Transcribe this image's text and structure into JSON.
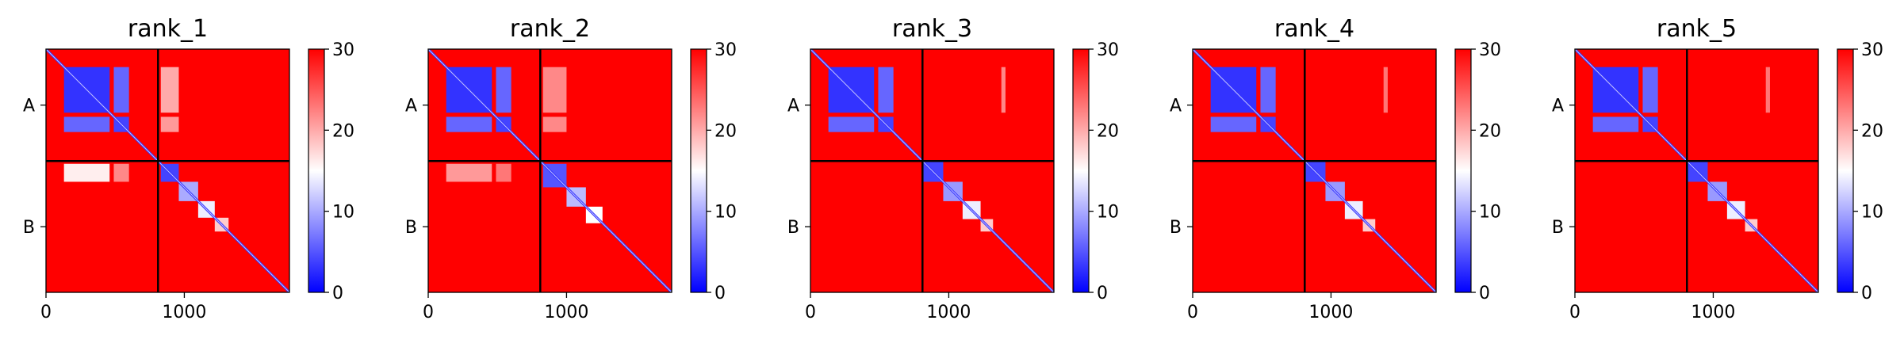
{
  "chart_data": [
    {
      "type": "heatmap",
      "title": "rank_1",
      "matrix_size": 1760,
      "chain_boundary": 810,
      "chains": [
        "A",
        "B"
      ],
      "chain_label_positions": [
        405,
        1285
      ],
      "x_ticks": [
        0,
        1000
      ],
      "x_tick_labels": [
        "0",
        "1000"
      ],
      "xlim": [
        0,
        1760
      ],
      "ylim": [
        1760,
        0
      ],
      "colorbar": {
        "ticks": [
          0,
          10,
          20,
          30
        ],
        "tick_labels": [
          "0",
          "10",
          "20",
          "30"
        ],
        "range": [
          0,
          30
        ]
      },
      "colormap": {
        "low": "#0000ff",
        "mid": "#ffffff",
        "high": "#ff0000",
        "mid_value": 15
      },
      "background_value": 30,
      "blocks": [
        {
          "r": [
            130,
            460
          ],
          "c": [
            130,
            460
          ],
          "v": 3
        },
        {
          "r": [
            130,
            460
          ],
          "c": [
            490,
            600
          ],
          "v": 6
        },
        {
          "r": [
            490,
            600
          ],
          "c": [
            130,
            460
          ],
          "v": 6
        },
        {
          "r": [
            490,
            600
          ],
          "c": [
            490,
            600
          ],
          "v": 4
        },
        {
          "r": [
            130,
            460
          ],
          "c": [
            830,
            960
          ],
          "v": 20
        },
        {
          "r": [
            490,
            600
          ],
          "c": [
            830,
            960
          ],
          "v": 21
        },
        {
          "r": [
            830,
            960
          ],
          "c": [
            130,
            460
          ],
          "v": 16
        },
        {
          "r": [
            830,
            960
          ],
          "c": [
            490,
            600
          ],
          "v": 22
        },
        {
          "r": [
            830,
            960
          ],
          "c": [
            830,
            960
          ],
          "v": 4
        },
        {
          "r": [
            960,
            1100
          ],
          "c": [
            960,
            1100
          ],
          "v": 10
        },
        {
          "r": [
            1100,
            1220
          ],
          "c": [
            1100,
            1220
          ],
          "v": 14
        },
        {
          "r": [
            1220,
            1320
          ],
          "c": [
            1220,
            1320
          ],
          "v": 18
        }
      ],
      "diagonal_value": 3
    },
    {
      "type": "heatmap",
      "title": "rank_2",
      "matrix_size": 1760,
      "chain_boundary": 810,
      "chains": [
        "A",
        "B"
      ],
      "chain_label_positions": [
        405,
        1285
      ],
      "x_ticks": [
        0,
        1000
      ],
      "x_tick_labels": [
        "0",
        "1000"
      ],
      "xlim": [
        0,
        1760
      ],
      "ylim": [
        1760,
        0
      ],
      "colorbar": {
        "ticks": [
          0,
          10,
          20,
          30
        ],
        "tick_labels": [
          "0",
          "10",
          "20",
          "30"
        ],
        "range": [
          0,
          30
        ]
      },
      "colormap": {
        "low": "#0000ff",
        "mid": "#ffffff",
        "high": "#ff0000",
        "mid_value": 15
      },
      "background_value": 30,
      "blocks": [
        {
          "r": [
            130,
            460
          ],
          "c": [
            130,
            460
          ],
          "v": 3
        },
        {
          "r": [
            130,
            460
          ],
          "c": [
            490,
            600
          ],
          "v": 6
        },
        {
          "r": [
            490,
            600
          ],
          "c": [
            130,
            460
          ],
          "v": 6
        },
        {
          "r": [
            490,
            600
          ],
          "c": [
            490,
            600
          ],
          "v": 4
        },
        {
          "r": [
            130,
            460
          ],
          "c": [
            830,
            1000
          ],
          "v": 22
        },
        {
          "r": [
            490,
            600
          ],
          "c": [
            830,
            1000
          ],
          "v": 22
        },
        {
          "r": [
            830,
            960
          ],
          "c": [
            130,
            460
          ],
          "v": 21
        },
        {
          "r": [
            830,
            960
          ],
          "c": [
            490,
            600
          ],
          "v": 23
        },
        {
          "r": [
            830,
            1000
          ],
          "c": [
            830,
            1000
          ],
          "v": 5
        },
        {
          "r": [
            1000,
            1140
          ],
          "c": [
            1000,
            1140
          ],
          "v": 11
        },
        {
          "r": [
            1140,
            1260
          ],
          "c": [
            1140,
            1260
          ],
          "v": 15
        }
      ],
      "diagonal_value": 3
    },
    {
      "type": "heatmap",
      "title": "rank_3",
      "matrix_size": 1760,
      "chain_boundary": 810,
      "chains": [
        "A",
        "B"
      ],
      "chain_label_positions": [
        405,
        1285
      ],
      "x_ticks": [
        0,
        1000
      ],
      "x_tick_labels": [
        "0",
        "1000"
      ],
      "xlim": [
        0,
        1760
      ],
      "ylim": [
        1760,
        0
      ],
      "colorbar": {
        "ticks": [
          0,
          10,
          20,
          30
        ],
        "tick_labels": [
          "0",
          "10",
          "20",
          "30"
        ],
        "range": [
          0,
          30
        ]
      },
      "colormap": {
        "low": "#0000ff",
        "mid": "#ffffff",
        "high": "#ff0000",
        "mid_value": 15
      },
      "background_value": 30,
      "blocks": [
        {
          "r": [
            130,
            460
          ],
          "c": [
            130,
            460
          ],
          "v": 3
        },
        {
          "r": [
            130,
            460
          ],
          "c": [
            490,
            600
          ],
          "v": 6
        },
        {
          "r": [
            490,
            600
          ],
          "c": [
            130,
            460
          ],
          "v": 6
        },
        {
          "r": [
            490,
            600
          ],
          "c": [
            490,
            600
          ],
          "v": 4
        },
        {
          "r": [
            130,
            460
          ],
          "c": [
            1380,
            1410
          ],
          "v": 22
        },
        {
          "r": [
            810,
            960
          ],
          "c": [
            810,
            960
          ],
          "v": 4
        },
        {
          "r": [
            960,
            1100
          ],
          "c": [
            960,
            1100
          ],
          "v": 9
        },
        {
          "r": [
            1100,
            1230
          ],
          "c": [
            1100,
            1230
          ],
          "v": 14
        },
        {
          "r": [
            1230,
            1320
          ],
          "c": [
            1230,
            1320
          ],
          "v": 18
        }
      ],
      "diagonal_value": 3
    },
    {
      "type": "heatmap",
      "title": "rank_4",
      "matrix_size": 1760,
      "chain_boundary": 810,
      "chains": [
        "A",
        "B"
      ],
      "chain_label_positions": [
        405,
        1285
      ],
      "x_ticks": [
        0,
        1000
      ],
      "x_tick_labels": [
        "0",
        "1000"
      ],
      "xlim": [
        0,
        1760
      ],
      "ylim": [
        1760,
        0
      ],
      "colorbar": {
        "ticks": [
          0,
          10,
          20,
          30
        ],
        "tick_labels": [
          "0",
          "10",
          "20",
          "30"
        ],
        "range": [
          0,
          30
        ]
      },
      "colormap": {
        "low": "#0000ff",
        "mid": "#ffffff",
        "high": "#ff0000",
        "mid_value": 15
      },
      "background_value": 30,
      "blocks": [
        {
          "r": [
            130,
            460
          ],
          "c": [
            130,
            460
          ],
          "v": 3
        },
        {
          "r": [
            130,
            460
          ],
          "c": [
            490,
            600
          ],
          "v": 6
        },
        {
          "r": [
            490,
            600
          ],
          "c": [
            130,
            460
          ],
          "v": 6
        },
        {
          "r": [
            490,
            600
          ],
          "c": [
            490,
            600
          ],
          "v": 4
        },
        {
          "r": [
            130,
            460
          ],
          "c": [
            1380,
            1410
          ],
          "v": 23
        },
        {
          "r": [
            810,
            960
          ],
          "c": [
            810,
            960
          ],
          "v": 4
        },
        {
          "r": [
            960,
            1100
          ],
          "c": [
            960,
            1100
          ],
          "v": 9
        },
        {
          "r": [
            1100,
            1230
          ],
          "c": [
            1100,
            1230
          ],
          "v": 14
        },
        {
          "r": [
            1230,
            1320
          ],
          "c": [
            1230,
            1320
          ],
          "v": 18
        }
      ],
      "diagonal_value": 3
    },
    {
      "type": "heatmap",
      "title": "rank_5",
      "matrix_size": 1760,
      "chain_boundary": 810,
      "chains": [
        "A",
        "B"
      ],
      "chain_label_positions": [
        405,
        1285
      ],
      "x_ticks": [
        0,
        1000
      ],
      "x_tick_labels": [
        "0",
        "1000"
      ],
      "xlim": [
        0,
        1760
      ],
      "ylim": [
        1760,
        0
      ],
      "colorbar": {
        "ticks": [
          0,
          10,
          20,
          30
        ],
        "tick_labels": [
          "0",
          "10",
          "20",
          "30"
        ],
        "range": [
          0,
          30
        ]
      },
      "colormap": {
        "low": "#0000ff",
        "mid": "#ffffff",
        "high": "#ff0000",
        "mid_value": 15
      },
      "background_value": 30,
      "blocks": [
        {
          "r": [
            130,
            460
          ],
          "c": [
            130,
            460
          ],
          "v": 3
        },
        {
          "r": [
            130,
            460
          ],
          "c": [
            490,
            600
          ],
          "v": 6
        },
        {
          "r": [
            490,
            600
          ],
          "c": [
            130,
            460
          ],
          "v": 6
        },
        {
          "r": [
            490,
            600
          ],
          "c": [
            490,
            600
          ],
          "v": 4
        },
        {
          "r": [
            130,
            460
          ],
          "c": [
            1380,
            1410
          ],
          "v": 23
        },
        {
          "r": [
            810,
            960
          ],
          "c": [
            810,
            960
          ],
          "v": 4
        },
        {
          "r": [
            960,
            1100
          ],
          "c": [
            960,
            1100
          ],
          "v": 9
        },
        {
          "r": [
            1100,
            1230
          ],
          "c": [
            1100,
            1230
          ],
          "v": 14
        },
        {
          "r": [
            1230,
            1320
          ],
          "c": [
            1230,
            1320
          ],
          "v": 18
        }
      ],
      "diagonal_value": 3
    }
  ]
}
